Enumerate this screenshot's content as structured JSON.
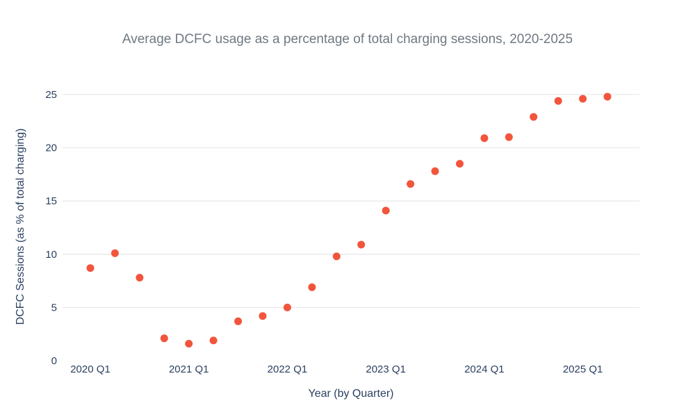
{
  "title": "Average DCFC usage as a percentage of total charging sessions, 2020-2025",
  "chart_data": {
    "type": "scatter",
    "title": "Average DCFC usage as a percentage of total charging sessions, 2020-2025",
    "xlabel": "Year (by Quarter)",
    "ylabel": "DCFC Sessions (as % of total charging)",
    "x": [
      "2020 Q1",
      "2020 Q2",
      "2020 Q3",
      "2020 Q4",
      "2021 Q1",
      "2021 Q2",
      "2021 Q3",
      "2021 Q4",
      "2022 Q1",
      "2022 Q2",
      "2022 Q3",
      "2022 Q4",
      "2023 Q1",
      "2023 Q2",
      "2023 Q3",
      "2023 Q4",
      "2024 Q1",
      "2024 Q2",
      "2024 Q3",
      "2024 Q4",
      "2025 Q1",
      "2025 Q2"
    ],
    "values": [
      8.7,
      10.1,
      7.8,
      2.1,
      1.6,
      1.9,
      3.7,
      4.2,
      5.0,
      6.9,
      9.8,
      10.9,
      14.1,
      16.6,
      17.8,
      18.5,
      20.9,
      21.0,
      22.9,
      24.4,
      24.6,
      24.8
    ],
    "x_tick_labels": [
      "2020 Q1",
      "2021 Q1",
      "2022 Q1",
      "2023 Q1",
      "2024 Q1",
      "2025 Q1"
    ],
    "x_tick_quarter_index": [
      0,
      4,
      8,
      12,
      16,
      20
    ],
    "y_ticks": [
      0,
      5,
      10,
      15,
      20,
      25
    ],
    "ylim": [
      0,
      26.5
    ],
    "grid": "horizontal gridlines at 5,10,15,20,25 (none at 0)",
    "legend": "none",
    "marker_color": "#f2553c",
    "axis_text_color": "#2a3f5f",
    "title_color": "#6f7882",
    "grid_color": "#e9e9e9",
    "background_color": "#ffffff"
  }
}
